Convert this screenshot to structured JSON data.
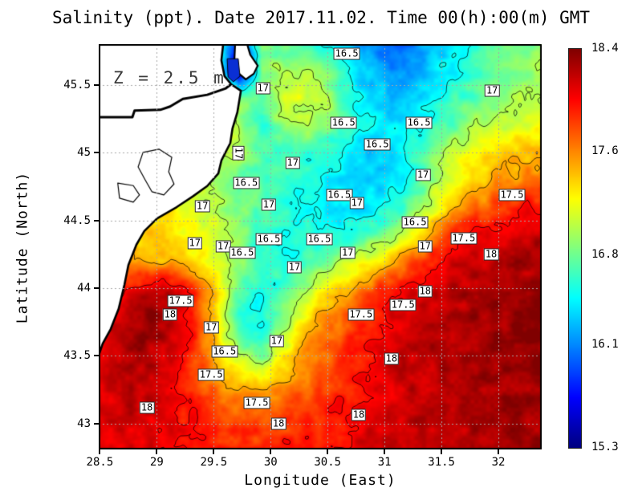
{
  "chart_data": {
    "type": "heatmap",
    "title": "Salinity (ppt). Date 2017.11.02. Time 00(h):00(m) GMT",
    "xlabel": "Longitude (East)",
    "ylabel": "Latitude (North)",
    "annotation": "Z = 2.5 m",
    "units": "ppt",
    "xlim": [
      28.49,
      32.38
    ],
    "ylim": [
      42.81,
      45.8
    ],
    "x_ticks": [
      28.5,
      29,
      29.5,
      30,
      30.5,
      31,
      31.5,
      32
    ],
    "x_tick_labels": [
      "28.5",
      "29",
      "29.5",
      "30",
      "30.5",
      "31",
      "31.5",
      "32"
    ],
    "y_ticks": [
      43,
      43.5,
      44,
      44.5,
      45,
      45.5
    ],
    "y_tick_labels": [
      "43",
      "43.5",
      "44",
      "44.5",
      "45",
      "45.5"
    ],
    "grid_on": true,
    "gridline_color": "#a8a8a8",
    "colorbar": {
      "min": 15.3,
      "max": 18.4,
      "tick_labels": [
        "18.4",
        "17.6",
        "16.8",
        "16.1",
        "15.3"
      ],
      "tick_values": [
        18.4,
        17.6,
        16.8,
        16.1,
        15.3
      ],
      "colormap": "jet",
      "top_color": "#8b0000",
      "bottom_color": "#000083"
    },
    "contour_levels": [
      16.5,
      17,
      17.5,
      18
    ],
    "salinity_grid": {
      "lon_start": 28.5,
      "lon_end": 32.4,
      "ncols": 20,
      "lat_start": 45.8,
      "lat_end": 42.8,
      "nrows": 16,
      "values": [
        [
          17.0,
          17.0,
          17.0,
          17.0,
          17.0,
          16.8,
          15.6,
          16.8,
          16.75,
          16.6,
          16.45,
          16.15,
          16.05,
          16.0,
          16.2,
          16.4,
          16.55,
          16.7,
          16.8,
          16.9
        ],
        [
          17.0,
          17.0,
          17.0,
          17.0,
          17.0,
          16.9,
          15.4,
          16.9,
          17.0,
          17.0,
          16.8,
          16.4,
          16.2,
          16.15,
          16.3,
          16.45,
          16.6,
          16.75,
          16.85,
          16.9
        ],
        [
          17.1,
          17.1,
          17.1,
          17.1,
          17.1,
          17.0,
          16.9,
          16.8,
          17.1,
          17.15,
          16.9,
          16.5,
          16.3,
          16.3,
          16.4,
          16.55,
          16.75,
          16.9,
          17.0,
          16.95
        ],
        [
          17.1,
          17.1,
          17.1,
          17.1,
          17.1,
          17.05,
          16.95,
          16.6,
          16.9,
          17.0,
          16.8,
          16.5,
          16.4,
          16.4,
          16.55,
          16.7,
          16.9,
          17.05,
          17.15,
          17.2
        ],
        [
          17.2,
          17.2,
          17.2,
          17.2,
          17.15,
          17.1,
          17.0,
          16.7,
          16.7,
          16.6,
          16.5,
          16.35,
          16.3,
          16.4,
          16.7,
          17.0,
          17.2,
          17.3,
          17.4,
          17.45
        ],
        [
          17.2,
          17.2,
          17.2,
          17.2,
          17.2,
          17.0,
          16.75,
          16.7,
          16.6,
          16.5,
          16.45,
          16.35,
          16.3,
          16.45,
          16.8,
          17.15,
          17.35,
          17.5,
          17.6,
          17.65
        ],
        [
          17.3,
          17.3,
          17.3,
          17.3,
          17.1,
          17.0,
          16.8,
          16.75,
          16.6,
          16.5,
          16.45,
          16.35,
          16.4,
          16.6,
          17.0,
          17.35,
          17.6,
          17.8,
          17.95,
          18.0
        ],
        [
          17.4,
          17.4,
          17.4,
          17.35,
          17.2,
          17.1,
          16.9,
          16.6,
          16.5,
          16.55,
          16.5,
          16.55,
          16.75,
          17.0,
          17.4,
          17.8,
          18.0,
          18.1,
          18.15,
          18.2
        ],
        [
          17.5,
          17.5,
          17.5,
          17.45,
          17.35,
          17.2,
          16.9,
          16.55,
          16.5,
          16.7,
          16.85,
          17.05,
          17.3,
          17.6,
          17.85,
          18.05,
          18.15,
          18.2,
          18.25,
          18.25
        ],
        [
          17.7,
          17.9,
          18.1,
          18.15,
          17.9,
          17.4,
          16.8,
          16.5,
          16.7,
          17.0,
          17.25,
          17.5,
          17.8,
          18.0,
          18.15,
          18.2,
          18.25,
          18.3,
          18.3,
          18.3
        ],
        [
          18.0,
          18.2,
          18.35,
          18.3,
          18.0,
          17.4,
          16.65,
          16.45,
          16.9,
          17.35,
          17.6,
          17.85,
          18.0,
          18.1,
          18.2,
          18.25,
          18.3,
          18.3,
          18.35,
          18.35
        ],
        [
          18.1,
          18.25,
          18.3,
          18.2,
          17.9,
          17.45,
          16.8,
          16.65,
          17.1,
          17.5,
          17.7,
          17.9,
          18.05,
          18.15,
          18.2,
          18.25,
          18.3,
          18.3,
          18.35,
          18.35
        ],
        [
          18.15,
          18.25,
          18.25,
          18.1,
          17.9,
          17.5,
          17.3,
          17.0,
          17.4,
          17.6,
          17.8,
          17.95,
          18.1,
          18.15,
          18.2,
          18.25,
          18.3,
          18.3,
          18.3,
          18.35
        ],
        [
          18.1,
          18.2,
          18.2,
          18.05,
          17.9,
          17.7,
          17.6,
          17.6,
          17.7,
          17.8,
          17.9,
          18.0,
          18.1,
          18.15,
          18.2,
          18.25,
          18.25,
          18.3,
          18.3,
          18.3
        ],
        [
          18.1,
          18.15,
          18.15,
          18.05,
          17.95,
          17.85,
          17.8,
          17.8,
          17.85,
          17.9,
          17.95,
          18.05,
          18.15,
          18.2,
          18.2,
          18.25,
          18.25,
          18.25,
          18.3,
          18.3
        ],
        [
          18.1,
          18.1,
          18.1,
          18.05,
          18.0,
          17.95,
          17.9,
          17.9,
          17.95,
          17.95,
          18.0,
          18.1,
          18.15,
          18.2,
          18.2,
          18.2,
          18.25,
          18.25,
          18.3,
          18.35
        ]
      ]
    },
    "contour_labels": [
      {
        "v": "16.5",
        "x": 56.0,
        "y": 2.4
      },
      {
        "v": "17",
        "x": 37.1,
        "y": 10.9
      },
      {
        "v": "17",
        "x": 88.8,
        "y": 11.5
      },
      {
        "v": "16.5",
        "x": 55.3,
        "y": 19.4
      },
      {
        "v": "16.5",
        "x": 72.3,
        "y": 19.4
      },
      {
        "v": "16.5",
        "x": 62.9,
        "y": 24.8
      },
      {
        "v": "17",
        "x": 31.5,
        "y": 27.0,
        "r": 90
      },
      {
        "v": "17",
        "x": 43.8,
        "y": 29.3
      },
      {
        "v": "17",
        "x": 73.2,
        "y": 32.3
      },
      {
        "v": "16.5",
        "x": 33.3,
        "y": 34.3
      },
      {
        "v": "16.5",
        "x": 54.3,
        "y": 37.2
      },
      {
        "v": "17.5",
        "x": 93.3,
        "y": 37.2
      },
      {
        "v": "17",
        "x": 58.3,
        "y": 39.2
      },
      {
        "v": "17",
        "x": 38.4,
        "y": 39.6
      },
      {
        "v": "17",
        "x": 23.4,
        "y": 40.0
      },
      {
        "v": "16.5",
        "x": 71.4,
        "y": 44.0
      },
      {
        "v": "17.5",
        "x": 82.4,
        "y": 47.9
      },
      {
        "v": "16.5",
        "x": 49.8,
        "y": 48.1
      },
      {
        "v": "16.5",
        "x": 38.4,
        "y": 48.1
      },
      {
        "v": "17",
        "x": 21.7,
        "y": 49.1
      },
      {
        "v": "17",
        "x": 28.1,
        "y": 49.9
      },
      {
        "v": "17",
        "x": 73.7,
        "y": 49.9
      },
      {
        "v": "16.5",
        "x": 32.4,
        "y": 51.5
      },
      {
        "v": "17",
        "x": 56.2,
        "y": 51.5
      },
      {
        "v": "18",
        "x": 88.6,
        "y": 51.9
      },
      {
        "v": "17",
        "x": 44.2,
        "y": 55.0
      },
      {
        "v": "18",
        "x": 73.7,
        "y": 61.0
      },
      {
        "v": "17.5",
        "x": 18.5,
        "y": 63.4
      },
      {
        "v": "17.5",
        "x": 68.7,
        "y": 64.4
      },
      {
        "v": "18",
        "x": 16.1,
        "y": 66.7
      },
      {
        "v": "17.5",
        "x": 59.2,
        "y": 66.7
      },
      {
        "v": "17",
        "x": 25.4,
        "y": 69.9
      },
      {
        "v": "17",
        "x": 40.2,
        "y": 73.3
      },
      {
        "v": "16.5",
        "x": 28.4,
        "y": 75.8
      },
      {
        "v": "18",
        "x": 66.1,
        "y": 77.6
      },
      {
        "v": "17.5",
        "x": 25.4,
        "y": 81.6
      },
      {
        "v": "17.5",
        "x": 35.7,
        "y": 88.5
      },
      {
        "v": "18",
        "x": 10.9,
        "y": 89.7
      },
      {
        "v": "18",
        "x": 58.7,
        "y": 91.5
      },
      {
        "v": "18",
        "x": 40.6,
        "y": 93.7
      }
    ],
    "coastline": {
      "land_color": "#ffffff",
      "line_color": "#000000",
      "land_polygon": [
        [
          0,
          0
        ],
        [
          0.281,
          0
        ],
        [
          0.277,
          0.04
        ],
        [
          0.284,
          0.079
        ],
        [
          0.299,
          0.099
        ],
        [
          0.321,
          0.115
        ],
        [
          0.313,
          0.168
        ],
        [
          0.302,
          0.208
        ],
        [
          0.297,
          0.244
        ],
        [
          0.277,
          0.287
        ],
        [
          0.27,
          0.319
        ],
        [
          0.245,
          0.35
        ],
        [
          0.212,
          0.376
        ],
        [
          0.176,
          0.402
        ],
        [
          0.132,
          0.43
        ],
        [
          0.103,
          0.461
        ],
        [
          0.085,
          0.495
        ],
        [
          0.067,
          0.545
        ],
        [
          0.058,
          0.594
        ],
        [
          0.045,
          0.653
        ],
        [
          0.027,
          0.703
        ],
        [
          0.009,
          0.739
        ],
        [
          0.0,
          0.768
        ]
      ],
      "river_line": [
        [
          0,
          0.18
        ],
        [
          0.076,
          0.18
        ],
        [
          0.081,
          0.164
        ],
        [
          0.139,
          0.162
        ],
        [
          0.161,
          0.154
        ],
        [
          0.19,
          0.135
        ],
        [
          0.245,
          0.125
        ],
        [
          0.287,
          0.109
        ],
        [
          0.299,
          0.099
        ]
      ],
      "east_bank_polygon": [
        [
          0.308,
          0
        ],
        [
          0.306,
          0.046
        ],
        [
          0.317,
          0.073
        ],
        [
          0.332,
          0.087
        ],
        [
          0.35,
          0.073
        ],
        [
          0.359,
          0.053
        ],
        [
          0.342,
          0.026
        ],
        [
          0.335,
          0
        ]
      ],
      "lagoons": [
        [
          [
            0.1,
            0.267
          ],
          [
            0.136,
            0.259
          ],
          [
            0.165,
            0.279
          ],
          [
            0.158,
            0.315
          ],
          [
            0.17,
            0.345
          ],
          [
            0.147,
            0.372
          ],
          [
            0.12,
            0.364
          ],
          [
            0.105,
            0.335
          ],
          [
            0.089,
            0.303
          ]
        ],
        [
          [
            0.043,
            0.343
          ],
          [
            0.078,
            0.349
          ],
          [
            0.092,
            0.372
          ],
          [
            0.078,
            0.39
          ],
          [
            0.047,
            0.38
          ]
        ]
      ],
      "river_plume_patch": {
        "color": "#0a2fd4",
        "polygon": [
          [
            0.29,
            0.036
          ],
          [
            0.315,
            0.036
          ],
          [
            0.319,
            0.079
          ],
          [
            0.304,
            0.093
          ],
          [
            0.292,
            0.081
          ]
        ]
      }
    }
  }
}
